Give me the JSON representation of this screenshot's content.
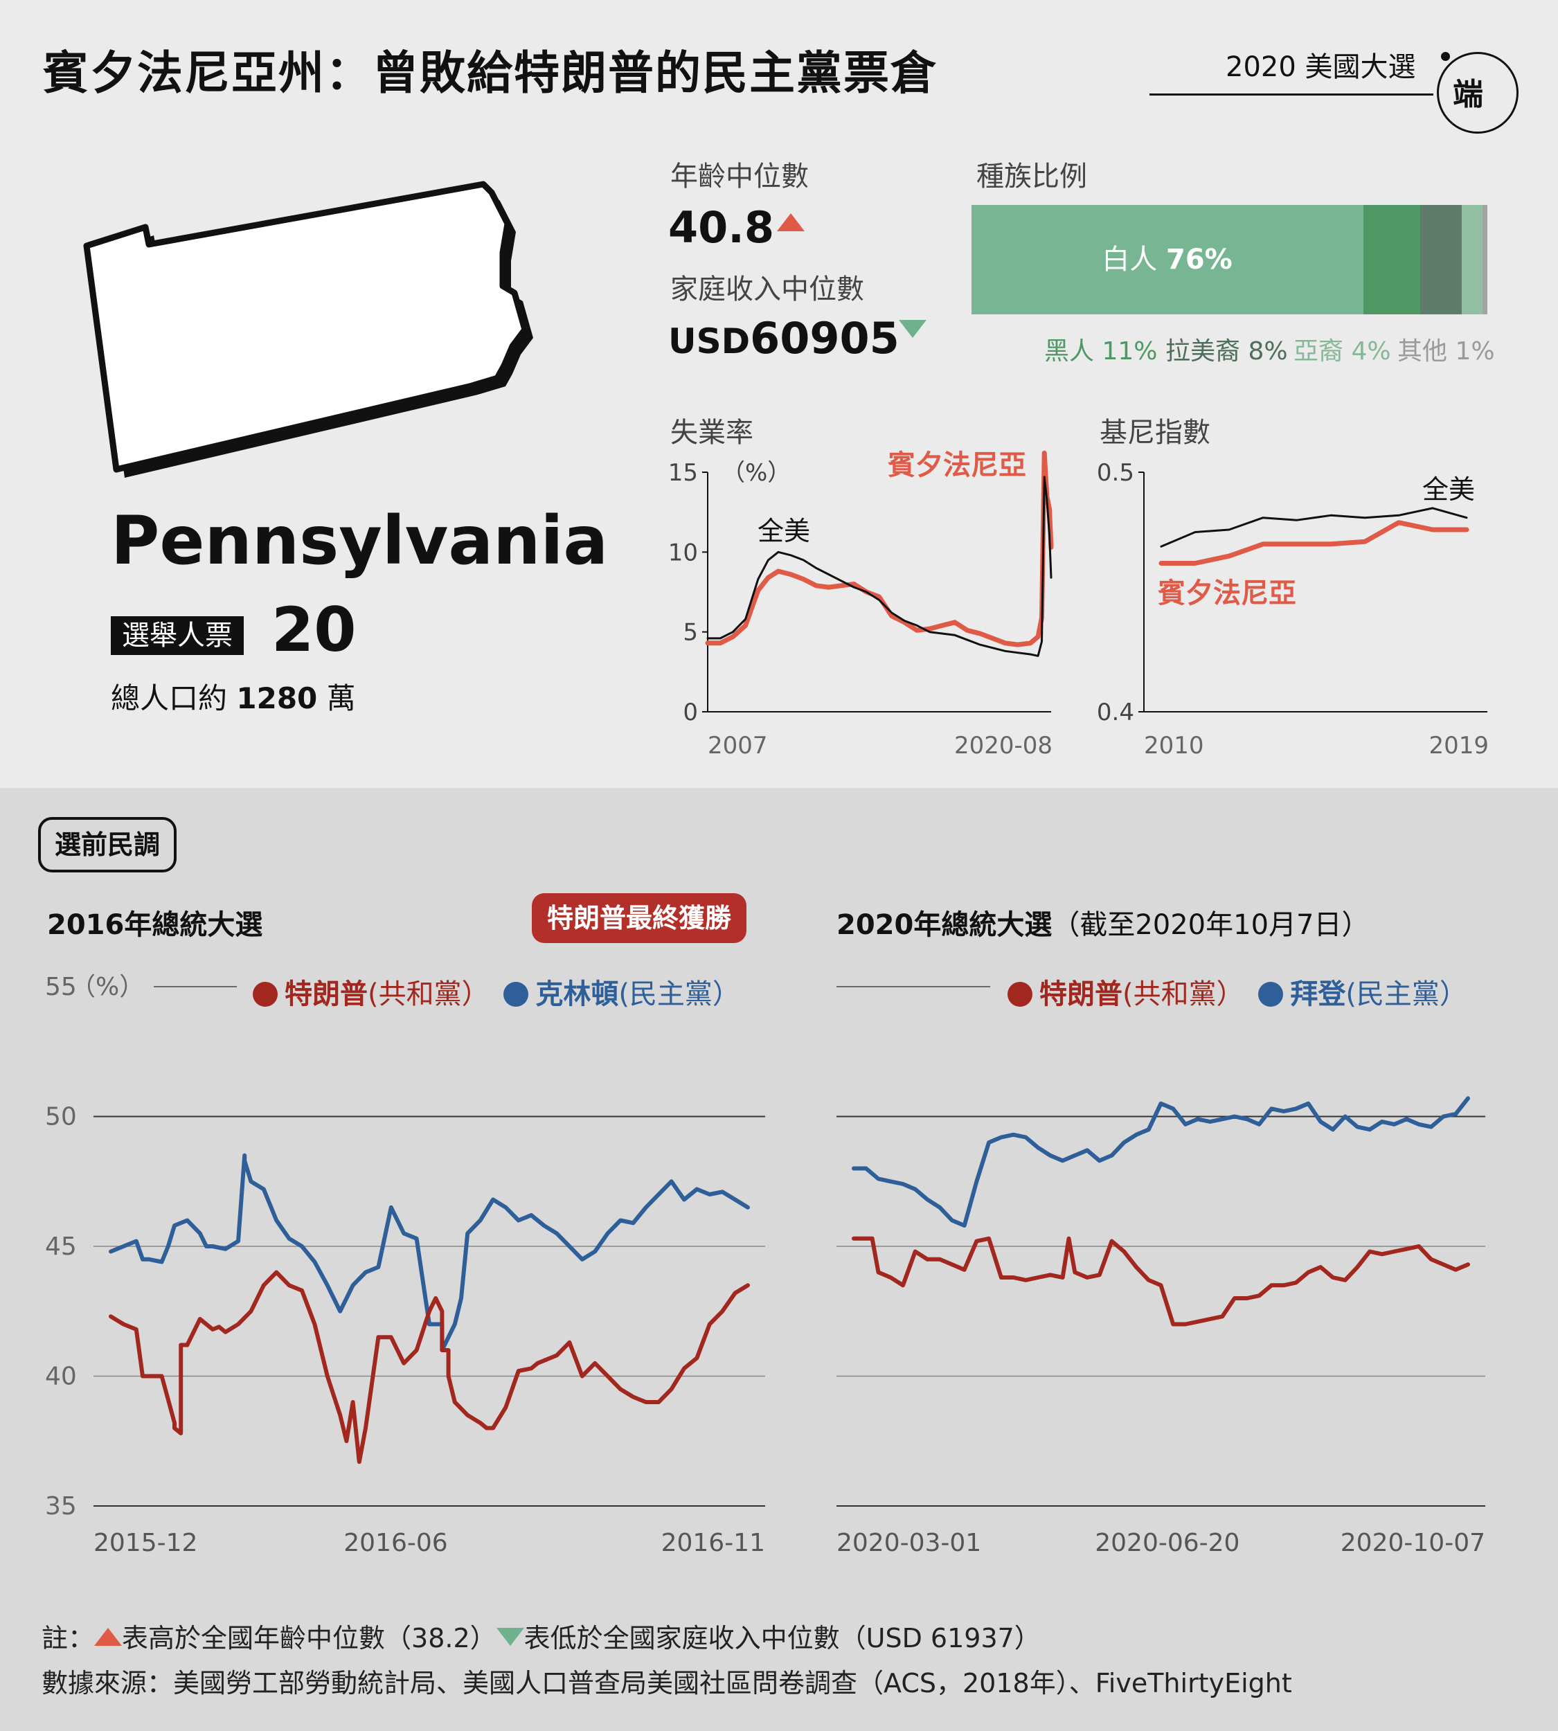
{
  "header": {
    "title": "賓夕法尼亞州：曾敗給特朗普的民主黨票倉",
    "tag": "2020 美國大選",
    "logo_text": "端"
  },
  "state": {
    "name": "Pennsylvania",
    "ev_label": "選舉人票",
    "ev_value": "20",
    "pop_prefix": "總人口約",
    "pop_value": "1280",
    "pop_suffix": "萬"
  },
  "stats": {
    "age_label": "年齡中位數",
    "age_value": "40.8",
    "income_label": "家庭收入中位數",
    "income_prefix": "USD",
    "income_value": "60905",
    "race_label": "種族比例",
    "race_main_name": "白人",
    "race_main_value": "76%",
    "race": [
      {
        "name": "白人",
        "pct": 76,
        "color": "#77b593"
      },
      {
        "name": "黑人",
        "pct": 11,
        "label": "11%",
        "color": "#4f9866"
      },
      {
        "name": "拉美裔",
        "pct": 8,
        "label": "8%",
        "color": "#5e7c69"
      },
      {
        "name": "亞裔",
        "pct": 4,
        "label": "4%",
        "color": "#93c0a3"
      },
      {
        "name": "其他",
        "pct": 1,
        "label": "1%",
        "color": "#a3a3a3"
      }
    ]
  },
  "colors": {
    "pa": "#e05a48",
    "trump": "#a2281f",
    "dem": "#2e5f98",
    "us": "#111111",
    "win_badge": "#b3302a"
  },
  "polls": {
    "section": "選前民調",
    "y_unit": "（%）",
    "left": {
      "title": "2016年總統大選",
      "winner": "特朗普最終獲勝",
      "rep_name": "特朗普",
      "rep_party": "(共和黨）",
      "dem_name": "克林頓",
      "dem_party": "(民主黨）"
    },
    "right": {
      "title": "2020年總統大選",
      "title_suffix": "（截至2020年10月7日）",
      "rep_name": "特朗普",
      "rep_party": "(共和黨）",
      "dem_name": "拜登",
      "dem_party": "(民主黨）"
    }
  },
  "notes": {
    "line1_prefix": "註：",
    "line1_a": "表高於全國年齡中位數（38.2）",
    "line1_b": "表低於全國家庭收入中位數（USD 61937）",
    "line2": "數據來源：美國勞工部勞動統計局、美國人口普查局美國社區問卷調查（ACS，2018年）、FiveThirtyEight"
  },
  "chart_data": [
    {
      "type": "line",
      "title": "失業率",
      "unit": "（%）",
      "ylim": [
        0,
        15
      ],
      "yticks": [
        0,
        5,
        10,
        15
      ],
      "x_start_label": "2007",
      "x_end_label": "2020-08",
      "series": [
        {
          "name": "全美",
          "x": [
            2007.0,
            2007.5,
            2008.0,
            2008.5,
            2009.0,
            2009.4,
            2009.8,
            2010.3,
            2010.8,
            2011.3,
            2011.8,
            2012.3,
            2012.8,
            2013.3,
            2013.8,
            2014.3,
            2014.8,
            2015.3,
            2015.8,
            2016.3,
            2016.8,
            2017.3,
            2017.8,
            2018.3,
            2018.8,
            2019.3,
            2019.8,
            2020.1,
            2020.25,
            2020.35,
            2020.45,
            2020.55,
            2020.62
          ],
          "values": [
            4.6,
            4.6,
            5.0,
            5.8,
            8.3,
            9.5,
            10.0,
            9.8,
            9.5,
            9.0,
            8.6,
            8.2,
            7.8,
            7.5,
            7.0,
            6.2,
            5.7,
            5.4,
            5.0,
            4.9,
            4.8,
            4.5,
            4.2,
            4.0,
            3.8,
            3.7,
            3.6,
            3.5,
            4.4,
            14.7,
            13.3,
            11.1,
            8.4
          ]
        },
        {
          "name": "賓夕法尼亞",
          "x": [
            2007.0,
            2007.5,
            2008.0,
            2008.5,
            2009.0,
            2009.4,
            2009.8,
            2010.3,
            2010.8,
            2011.3,
            2011.8,
            2012.3,
            2012.8,
            2013.3,
            2013.8,
            2014.3,
            2014.8,
            2015.3,
            2015.8,
            2016.3,
            2016.8,
            2017.3,
            2017.8,
            2018.3,
            2018.8,
            2019.3,
            2019.8,
            2020.1,
            2020.25,
            2020.35,
            2020.45,
            2020.55,
            2020.62
          ],
          "values": [
            4.3,
            4.3,
            4.7,
            5.4,
            7.6,
            8.4,
            8.8,
            8.6,
            8.3,
            7.9,
            7.8,
            7.9,
            8.0,
            7.5,
            7.2,
            6.0,
            5.6,
            5.1,
            5.2,
            5.4,
            5.6,
            5.1,
            4.9,
            4.6,
            4.3,
            4.2,
            4.3,
            4.7,
            5.9,
            16.2,
            13.5,
            12.7,
            10.3
          ]
        }
      ]
    },
    {
      "type": "line",
      "title": "基尼指數",
      "ylim": [
        0.4,
        0.5
      ],
      "yticks": [
        0.4,
        0.5
      ],
      "x_start_label": "2010",
      "x_end_label": "2019",
      "series": [
        {
          "name": "全美",
          "x": [
            2010,
            2011,
            2012,
            2013,
            2014,
            2015,
            2016,
            2017,
            2018,
            2019
          ],
          "values": [
            0.469,
            0.475,
            0.476,
            0.481,
            0.48,
            0.482,
            0.481,
            0.482,
            0.485,
            0.481
          ]
        },
        {
          "name": "賓夕法尼亞",
          "x": [
            2010,
            2011,
            2012,
            2013,
            2014,
            2015,
            2016,
            2017,
            2018,
            2019
          ],
          "values": [
            0.462,
            0.462,
            0.465,
            0.47,
            0.47,
            0.47,
            0.471,
            0.479,
            0.476,
            0.476
          ]
        }
      ]
    },
    {
      "type": "line",
      "title": "2016年總統大選",
      "ylim": [
        35,
        55
      ],
      "yticks": [
        35,
        40,
        45,
        50,
        55
      ],
      "x_tick_labels": [
        "2015-12",
        "2016-06",
        "2016-11"
      ],
      "x_tick_pos": [
        0,
        0.45,
        1
      ],
      "series": [
        {
          "name": "特朗普",
          "x": [
            0,
            0.02,
            0.04,
            0.05,
            0.06,
            0.08,
            0.1,
            0.1,
            0.1,
            0.11,
            0.11,
            0.12,
            0.14,
            0.16,
            0.17,
            0.18,
            0.2,
            0.22,
            0.24,
            0.26,
            0.28,
            0.3,
            0.32,
            0.34,
            0.36,
            0.37,
            0.38,
            0.39,
            0.4,
            0.42,
            0.44,
            0.46,
            0.48,
            0.5,
            0.51,
            0.52,
            0.52,
            0.53,
            0.53,
            0.54,
            0.56,
            0.58,
            0.59,
            0.6,
            0.6,
            0.62,
            0.63,
            0.64,
            0.66,
            0.67,
            0.7,
            0.72,
            0.74,
            0.76,
            0.78,
            0.8,
            0.82,
            0.84,
            0.86,
            0.88,
            0.9,
            0.92,
            0.94,
            0.96,
            0.98,
            1
          ],
          "values": [
            42.3,
            42.0,
            41.8,
            40.0,
            40.0,
            40.0,
            38.2,
            38.0,
            38.0,
            37.8,
            41.2,
            41.2,
            42.2,
            41.8,
            41.9,
            41.7,
            42.0,
            42.5,
            43.5,
            44.0,
            43.5,
            43.3,
            42.0,
            40.0,
            38.5,
            37.5,
            39.0,
            36.7,
            38.0,
            41.5,
            41.5,
            40.5,
            41.0,
            42.5,
            43.0,
            42.5,
            41.0,
            41.0,
            40.0,
            39.0,
            38.5,
            38.2,
            38.0,
            38.0,
            38.0,
            38.8,
            39.5,
            40.2,
            40.3,
            40.5,
            40.8,
            41.3,
            40.0,
            40.5,
            40.0,
            39.5,
            39.2,
            39.0,
            39.0,
            39.5,
            40.3,
            40.7,
            42.0,
            42.5,
            43.2,
            43.5
          ]
        },
        {
          "name": "克林頓",
          "x": [
            0,
            0.02,
            0.04,
            0.05,
            0.06,
            0.08,
            0.09,
            0.1,
            0.12,
            0.14,
            0.15,
            0.16,
            0.18,
            0.2,
            0.21,
            0.21,
            0.22,
            0.24,
            0.26,
            0.28,
            0.3,
            0.32,
            0.34,
            0.36,
            0.38,
            0.4,
            0.42,
            0.44,
            0.46,
            0.48,
            0.5,
            0.52,
            0.52,
            0.54,
            0.55,
            0.56,
            0.58,
            0.6,
            0.62,
            0.64,
            0.66,
            0.68,
            0.7,
            0.72,
            0.74,
            0.76,
            0.78,
            0.8,
            0.82,
            0.84,
            0.86,
            0.88,
            0.9,
            0.92,
            0.94,
            0.96,
            0.98,
            1
          ],
          "values": [
            44.8,
            45.0,
            45.2,
            44.5,
            44.5,
            44.4,
            45.0,
            45.8,
            46.0,
            45.5,
            45.0,
            45.0,
            44.9,
            45.2,
            48.5,
            48.3,
            47.5,
            47.2,
            46.0,
            45.3,
            45.0,
            44.4,
            43.5,
            42.5,
            43.5,
            44.0,
            44.2,
            46.5,
            45.5,
            45.3,
            42.0,
            42.0,
            41.0,
            42.0,
            43.0,
            45.5,
            46.0,
            46.8,
            46.5,
            46.0,
            46.2,
            45.8,
            45.5,
            45.0,
            44.5,
            44.8,
            45.5,
            46.0,
            45.9,
            46.5,
            47.0,
            47.5,
            46.8,
            47.2,
            47.0,
            47.1,
            46.8,
            46.5
          ]
        }
      ]
    },
    {
      "type": "line",
      "title": "2020年總統大選",
      "ylim": [
        35,
        55
      ],
      "yticks": [
        35,
        40,
        45,
        50,
        55
      ],
      "x_tick_labels": [
        "2020-03-01",
        "2020-06-20",
        "2020-10-07"
      ],
      "x_tick_pos": [
        0,
        0.51,
        1
      ],
      "series": [
        {
          "name": "特朗普",
          "x": [
            0,
            0.03,
            0.04,
            0.06,
            0.08,
            0.1,
            0.12,
            0.14,
            0.16,
            0.18,
            0.2,
            0.22,
            0.24,
            0.26,
            0.28,
            0.3,
            0.32,
            0.34,
            0.35,
            0.36,
            0.38,
            0.4,
            0.42,
            0.44,
            0.46,
            0.48,
            0.5,
            0.52,
            0.54,
            0.56,
            0.58,
            0.6,
            0.62,
            0.64,
            0.66,
            0.68,
            0.7,
            0.72,
            0.74,
            0.76,
            0.78,
            0.8,
            0.82,
            0.84,
            0.86,
            0.88,
            0.9,
            0.92,
            0.94,
            0.96,
            0.98,
            1
          ],
          "values": [
            45.3,
            45.3,
            44.0,
            43.8,
            43.5,
            44.8,
            44.5,
            44.5,
            44.3,
            44.1,
            45.2,
            45.3,
            43.8,
            43.8,
            43.7,
            43.8,
            43.9,
            43.8,
            45.3,
            44.0,
            43.8,
            43.9,
            45.2,
            44.8,
            44.2,
            43.7,
            43.5,
            42.0,
            42.0,
            42.1,
            42.2,
            42.3,
            43.0,
            43.0,
            43.1,
            43.5,
            43.5,
            43.6,
            44.0,
            44.2,
            43.8,
            43.7,
            44.2,
            44.8,
            44.7,
            44.8,
            44.9,
            45.0,
            44.5,
            44.3,
            44.1,
            44.3
          ]
        },
        {
          "name": "拜登",
          "x": [
            0,
            0.02,
            0.04,
            0.06,
            0.08,
            0.1,
            0.12,
            0.14,
            0.16,
            0.18,
            0.2,
            0.22,
            0.24,
            0.26,
            0.28,
            0.3,
            0.32,
            0.34,
            0.36,
            0.38,
            0.4,
            0.42,
            0.44,
            0.46,
            0.48,
            0.5,
            0.52,
            0.54,
            0.56,
            0.58,
            0.6,
            0.62,
            0.64,
            0.66,
            0.68,
            0.7,
            0.72,
            0.74,
            0.76,
            0.78,
            0.8,
            0.82,
            0.84,
            0.86,
            0.88,
            0.9,
            0.92,
            0.94,
            0.96,
            0.98,
            1
          ],
          "values": [
            48.0,
            48.0,
            47.6,
            47.5,
            47.4,
            47.2,
            46.8,
            46.5,
            46.0,
            45.8,
            47.5,
            49.0,
            49.2,
            49.3,
            49.2,
            48.8,
            48.5,
            48.3,
            48.5,
            48.7,
            48.3,
            48.5,
            49.0,
            49.3,
            49.5,
            50.5,
            50.3,
            49.7,
            49.9,
            49.8,
            49.9,
            50.0,
            49.9,
            49.7,
            50.3,
            50.2,
            50.3,
            50.5,
            49.8,
            49.5,
            50.0,
            49.6,
            49.5,
            49.8,
            49.7,
            49.9,
            49.7,
            49.6,
            50.0,
            50.1,
            50.7
          ]
        }
      ]
    }
  ]
}
